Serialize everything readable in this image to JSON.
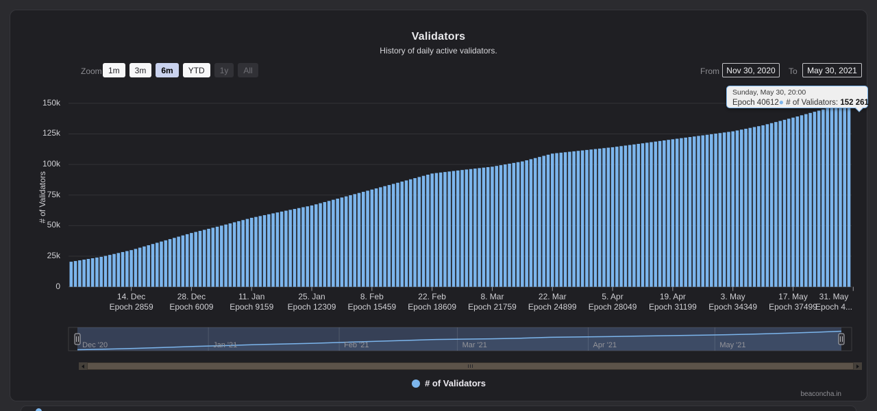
{
  "header": {
    "title": "Validators",
    "subtitle": "History of daily active validators."
  },
  "toolbar": {
    "zoom_label": "Zoom",
    "zoom_buttons": [
      {
        "label": "1m",
        "state": "normal"
      },
      {
        "label": "3m",
        "state": "normal"
      },
      {
        "label": "6m",
        "state": "selected"
      },
      {
        "label": "YTD",
        "state": "normal"
      },
      {
        "label": "1y",
        "state": "disabled"
      },
      {
        "label": "All",
        "state": "disabled"
      }
    ],
    "from_label": "From",
    "from_value": "Nov 30, 2020",
    "to_label": "To",
    "to_value": "May 30, 2021"
  },
  "tooltip": {
    "datetime": "Sunday, May 30, 20:00",
    "epoch": "Epoch 40612",
    "dot": "●",
    "series_label": "# of Validators:",
    "value_formatted": "152 261"
  },
  "chart_data": {
    "type": "bar",
    "title": "Validators",
    "subtitle": "History of daily active validators.",
    "ylabel": "# of Validators",
    "legend": "# of Validators",
    "series_color": "#7cb5ec",
    "grid": true,
    "legend_position": "bottom",
    "ylim": [
      0,
      162500
    ],
    "x_range": {
      "start": "Nov 30, 2020",
      "end": "May 30, 2021",
      "days": 181
    },
    "yticks": [
      {
        "label": "0",
        "value": 0
      },
      {
        "label": "25k",
        "value": 25000
      },
      {
        "label": "50k",
        "value": 50000
      },
      {
        "label": "75k",
        "value": 75000
      },
      {
        "label": "100k",
        "value": 100000
      },
      {
        "label": "125k",
        "value": 125000
      },
      {
        "label": "150k",
        "value": 150000
      }
    ],
    "xticks": [
      {
        "date": "14. Dec",
        "epoch": "Epoch 2859",
        "day": 14
      },
      {
        "date": "28. Dec",
        "epoch": "Epoch 6009",
        "day": 28
      },
      {
        "date": "11. Jan",
        "epoch": "Epoch 9159",
        "day": 42
      },
      {
        "date": "25. Jan",
        "epoch": "Epoch 12309",
        "day": 56
      },
      {
        "date": "8. Feb",
        "epoch": "Epoch 15459",
        "day": 70
      },
      {
        "date": "22. Feb",
        "epoch": "Epoch 18609",
        "day": 84
      },
      {
        "date": "8. Mar",
        "epoch": "Epoch 21759",
        "day": 98
      },
      {
        "date": "22. Mar",
        "epoch": "Epoch 24899",
        "day": 112
      },
      {
        "date": "5. Apr",
        "epoch": "Epoch 28049",
        "day": 126
      },
      {
        "date": "19. Apr",
        "epoch": "Epoch 31199",
        "day": 140
      },
      {
        "date": "3. May",
        "epoch": "Epoch 34349",
        "day": 154
      },
      {
        "date": "17. May",
        "epoch": "Epoch 37499",
        "day": 168
      },
      {
        "date": "31. May",
        "epoch": "Epoch 4...",
        "day": 182
      }
    ],
    "samples": [
      [
        0,
        20500
      ],
      [
        7,
        24500
      ],
      [
        14,
        30000
      ],
      [
        21,
        37000
      ],
      [
        28,
        44000
      ],
      [
        35,
        50000
      ],
      [
        42,
        56400
      ],
      [
        49,
        61500
      ],
      [
        56,
        66500
      ],
      [
        63,
        73000
      ],
      [
        70,
        79500
      ],
      [
        77,
        86000
      ],
      [
        84,
        92600
      ],
      [
        91,
        95500
      ],
      [
        98,
        98200
      ],
      [
        105,
        102500
      ],
      [
        112,
        108900
      ],
      [
        119,
        111500
      ],
      [
        126,
        114100
      ],
      [
        133,
        117300
      ],
      [
        140,
        120600
      ],
      [
        147,
        123800
      ],
      [
        154,
        127100
      ],
      [
        161,
        132000
      ],
      [
        168,
        138300
      ],
      [
        175,
        145000
      ],
      [
        181,
        152261
      ]
    ],
    "last_point": {
      "datetime": "Sunday, May 30, 20:00",
      "epoch": "Epoch 40612",
      "value": 152261
    }
  },
  "navigator": {
    "months": [
      {
        "label": "Dec '20",
        "day": 1
      },
      {
        "label": "Jan '21",
        "day": 32
      },
      {
        "label": "Feb '21",
        "day": 63
      },
      {
        "label": "Mar '21",
        "day": 91
      },
      {
        "label": "Apr '21",
        "day": 122
      },
      {
        "label": "May '21",
        "day": 152
      }
    ],
    "mask_color": "rgba(104,134,196,0.32)"
  },
  "legend": {
    "label": "# of Validators",
    "marker_color": "#7cb5ec"
  },
  "credit": "beaconcha.in"
}
